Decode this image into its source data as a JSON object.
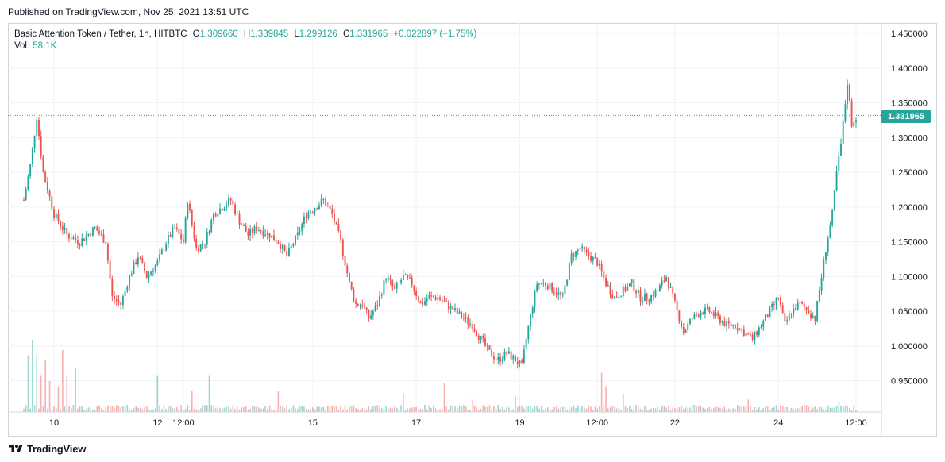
{
  "published": "Published on TradingView.com, Nov 25, 2021 13:51 UTC",
  "legend": {
    "symbol": "Basic Attention Token / Tether, 1h, HITBTC",
    "open_label": "O",
    "open": "1.309660",
    "high_label": "H",
    "high": "1.339845",
    "low_label": "L",
    "low": "1.299126",
    "close_label": "C",
    "close": "1.331965",
    "change": "+0.022897 (+1.75%)",
    "vol_label": "Vol",
    "vol": "58.1K"
  },
  "colors": {
    "up": "#26a69a",
    "down": "#ef5350",
    "grid": "#f0f3fa",
    "frame": "#d1d4dc"
  },
  "footer": {
    "brand": "TradingView",
    "logo_icon": "tradingview-logo-icon"
  },
  "chart_data": {
    "type": "candlestick",
    "title": "Basic Attention Token / Tether, 1h, HITBTC",
    "ylim": [
      0.905,
      1.465
    ],
    "y_ticks": [
      "1.450000",
      "1.400000",
      "1.350000",
      "1.300000",
      "1.250000",
      "1.200000",
      "1.150000",
      "1.100000",
      "1.050000",
      "1.000000",
      "0.950000"
    ],
    "x_ticks": [
      "10",
      "12",
      "12:00",
      "15",
      "17",
      "19",
      "12:00",
      "22",
      "24",
      "12:00"
    ],
    "x_tick_positions_hours": [
      14,
      62,
      74,
      134,
      182,
      230,
      266,
      302,
      350,
      386
    ],
    "last_price": "1.331965",
    "grid": true,
    "series_path": [
      [
        0,
        1.21
      ],
      [
        3,
        1.26
      ],
      [
        6,
        1.33
      ],
      [
        9,
        1.25
      ],
      [
        14,
        1.19
      ],
      [
        20,
        1.16
      ],
      [
        26,
        1.15
      ],
      [
        33,
        1.17
      ],
      [
        38,
        1.15
      ],
      [
        41,
        1.07
      ],
      [
        45,
        1.06
      ],
      [
        49,
        1.1
      ],
      [
        53,
        1.13
      ],
      [
        57,
        1.1
      ],
      [
        62,
        1.12
      ],
      [
        66,
        1.15
      ],
      [
        70,
        1.17
      ],
      [
        74,
        1.15
      ],
      [
        76,
        1.21
      ],
      [
        80,
        1.14
      ],
      [
        84,
        1.15
      ],
      [
        88,
        1.19
      ],
      [
        92,
        1.2
      ],
      [
        96,
        1.21
      ],
      [
        100,
        1.18
      ],
      [
        104,
        1.16
      ],
      [
        108,
        1.17
      ],
      [
        114,
        1.16
      ],
      [
        118,
        1.15
      ],
      [
        122,
        1.13
      ],
      [
        127,
        1.16
      ],
      [
        131,
        1.19
      ],
      [
        135,
        1.2
      ],
      [
        139,
        1.21
      ],
      [
        143,
        1.19
      ],
      [
        147,
        1.15
      ],
      [
        151,
        1.09
      ],
      [
        154,
        1.06
      ],
      [
        157,
        1.06
      ],
      [
        160,
        1.04
      ],
      [
        164,
        1.06
      ],
      [
        168,
        1.1
      ],
      [
        172,
        1.08
      ],
      [
        176,
        1.1
      ],
      [
        180,
        1.09
      ],
      [
        184,
        1.06
      ],
      [
        188,
        1.07
      ],
      [
        192,
        1.07
      ],
      [
        196,
        1.06
      ],
      [
        200,
        1.05
      ],
      [
        204,
        1.04
      ],
      [
        208,
        1.03
      ],
      [
        212,
        1.01
      ],
      [
        216,
        0.99
      ],
      [
        220,
        0.98
      ],
      [
        224,
        0.99
      ],
      [
        228,
        0.98
      ],
      [
        231,
        0.97
      ],
      [
        233,
        1.01
      ],
      [
        236,
        1.06
      ],
      [
        238,
        1.09
      ],
      [
        242,
        1.09
      ],
      [
        246,
        1.08
      ],
      [
        250,
        1.07
      ],
      [
        254,
        1.13
      ],
      [
        258,
        1.14
      ],
      [
        262,
        1.13
      ],
      [
        266,
        1.12
      ],
      [
        270,
        1.09
      ],
      [
        274,
        1.07
      ],
      [
        278,
        1.08
      ],
      [
        282,
        1.09
      ],
      [
        286,
        1.07
      ],
      [
        290,
        1.07
      ],
      [
        294,
        1.08
      ],
      [
        298,
        1.1
      ],
      [
        302,
        1.06
      ],
      [
        306,
        1.02
      ],
      [
        310,
        1.04
      ],
      [
        314,
        1.05
      ],
      [
        318,
        1.05
      ],
      [
        322,
        1.04
      ],
      [
        326,
        1.03
      ],
      [
        330,
        1.03
      ],
      [
        334,
        1.02
      ],
      [
        338,
        1.01
      ],
      [
        342,
        1.03
      ],
      [
        346,
        1.05
      ],
      [
        350,
        1.07
      ],
      [
        353,
        1.03
      ],
      [
        356,
        1.05
      ],
      [
        360,
        1.06
      ],
      [
        364,
        1.05
      ],
      [
        367,
        1.04
      ],
      [
        369,
        1.08
      ],
      [
        372,
        1.14
      ],
      [
        375,
        1.19
      ],
      [
        377,
        1.25
      ],
      [
        379,
        1.29
      ],
      [
        382,
        1.38
      ],
      [
        384,
        1.32
      ],
      [
        386,
        1.33
      ]
    ],
    "volume_spikes_hours": [
      [
        2,
        0.55
      ],
      [
        4,
        0.7
      ],
      [
        6,
        0.55
      ],
      [
        8,
        0.35
      ],
      [
        10,
        0.5
      ],
      [
        12,
        0.3
      ],
      [
        16,
        0.25
      ],
      [
        18,
        0.6
      ],
      [
        20,
        0.35
      ],
      [
        24,
        0.42
      ],
      [
        62,
        0.35
      ],
      [
        78,
        0.2
      ],
      [
        86,
        0.35
      ],
      [
        118,
        0.2
      ],
      [
        176,
        0.18
      ],
      [
        195,
        0.28
      ],
      [
        208,
        0.12
      ],
      [
        228,
        0.15
      ],
      [
        268,
        0.38
      ],
      [
        270,
        0.25
      ],
      [
        278,
        0.18
      ],
      [
        336,
        0.12
      ],
      [
        378,
        0.1
      ]
    ]
  }
}
